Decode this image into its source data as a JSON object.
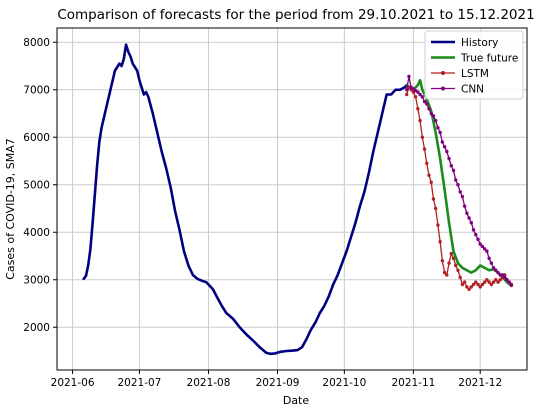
{
  "chart_data": {
    "type": "line",
    "title": "Comparison of forecasts for the period from 29.10.2021 to 15.12.2021",
    "xlabel": "Date",
    "ylabel": "Cases of COVID-19, SMA7",
    "xlim": [
      "2021-05-25",
      "2021-12-22"
    ],
    "ylim": [
      1100,
      8300
    ],
    "x_ticks": [
      "2021-06-01",
      "2021-07-01",
      "2021-08-01",
      "2021-09-01",
      "2021-10-01",
      "2021-11-01",
      "2021-12-01"
    ],
    "x_tick_labels": [
      "2021-06",
      "2021-07",
      "2021-08",
      "2021-09",
      "2021-10",
      "2021-11",
      "2021-12"
    ],
    "y_ticks": [
      2000,
      3000,
      4000,
      5000,
      6000,
      7000,
      8000
    ],
    "y_tick_labels": [
      "2000",
      "3000",
      "4000",
      "5000",
      "6000",
      "7000",
      "8000"
    ],
    "grid": true,
    "legend_position": "top-right",
    "series": [
      {
        "name": "History",
        "color": "#000080",
        "marker": "none",
        "x": [
          "2021-06-06",
          "2021-06-07",
          "2021-06-08",
          "2021-06-09",
          "2021-06-10",
          "2021-06-11",
          "2021-06-12",
          "2021-06-13",
          "2021-06-14",
          "2021-06-16",
          "2021-06-18",
          "2021-06-20",
          "2021-06-22",
          "2021-06-23",
          "2021-06-24",
          "2021-06-25",
          "2021-06-26",
          "2021-06-27",
          "2021-06-28",
          "2021-06-30",
          "2021-07-01",
          "2021-07-02",
          "2021-07-03",
          "2021-07-04",
          "2021-07-05",
          "2021-07-07",
          "2021-07-09",
          "2021-07-11",
          "2021-07-13",
          "2021-07-15",
          "2021-07-17",
          "2021-07-19",
          "2021-07-21",
          "2021-07-23",
          "2021-07-25",
          "2021-07-27",
          "2021-07-29",
          "2021-07-31",
          "2021-08-01",
          "2021-08-03",
          "2021-08-05",
          "2021-08-07",
          "2021-08-09",
          "2021-08-12",
          "2021-08-15",
          "2021-08-18",
          "2021-08-21",
          "2021-08-24",
          "2021-08-27",
          "2021-08-29",
          "2021-08-31",
          "2021-09-02",
          "2021-09-05",
          "2021-09-08",
          "2021-09-10",
          "2021-09-12",
          "2021-09-14",
          "2021-09-16",
          "2021-09-18",
          "2021-09-20",
          "2021-09-22",
          "2021-09-24",
          "2021-09-26",
          "2021-09-28",
          "2021-09-30",
          "2021-10-02",
          "2021-10-04",
          "2021-10-06",
          "2021-10-08",
          "2021-10-10",
          "2021-10-12",
          "2021-10-14",
          "2021-10-16",
          "2021-10-18",
          "2021-10-20",
          "2021-10-22",
          "2021-10-24",
          "2021-10-26",
          "2021-10-28",
          "2021-10-29"
        ],
        "y": [
          3020,
          3080,
          3300,
          3650,
          4200,
          4800,
          5400,
          5900,
          6200,
          6600,
          7000,
          7400,
          7550,
          7500,
          7650,
          7950,
          7800,
          7700,
          7550,
          7400,
          7200,
          7050,
          6900,
          6950,
          6850,
          6500,
          6100,
          5700,
          5350,
          4950,
          4450,
          4050,
          3600,
          3300,
          3100,
          3020,
          2980,
          2950,
          2900,
          2800,
          2620,
          2450,
          2300,
          2180,
          2000,
          1850,
          1720,
          1580,
          1460,
          1440,
          1450,
          1480,
          1500,
          1510,
          1520,
          1580,
          1750,
          1950,
          2100,
          2300,
          2450,
          2650,
          2900,
          3100,
          3350,
          3600,
          3900,
          4200,
          4550,
          4850,
          5250,
          5700,
          6100,
          6500,
          6900,
          6900,
          7000,
          7000,
          7050,
          7100
        ]
      },
      {
        "name": "True future",
        "color": "#1a8c1a",
        "marker": "none",
        "x": [
          "2021-10-29",
          "2021-11-01",
          "2021-11-03",
          "2021-11-04",
          "2021-11-05",
          "2021-11-07",
          "2021-11-09",
          "2021-11-11",
          "2021-11-13",
          "2021-11-15",
          "2021-11-17",
          "2021-11-19",
          "2021-11-21",
          "2021-11-23",
          "2021-11-25",
          "2021-11-27",
          "2021-11-29",
          "2021-12-01",
          "2021-12-03",
          "2021-12-05",
          "2021-12-07",
          "2021-12-09",
          "2021-12-11",
          "2021-12-13",
          "2021-12-15"
        ],
        "y": [
          7100,
          7000,
          7100,
          7200,
          7000,
          6800,
          6550,
          6100,
          5550,
          4900,
          4200,
          3600,
          3350,
          3250,
          3200,
          3150,
          3200,
          3300,
          3250,
          3200,
          3220,
          3150,
          3050,
          2950,
          2870
        ]
      },
      {
        "name": "LSTM",
        "color": "#b22222",
        "marker": "dot",
        "x": [
          "2021-10-29",
          "2021-10-30",
          "2021-10-31",
          "2021-11-01",
          "2021-11-02",
          "2021-11-03",
          "2021-11-04",
          "2021-11-05",
          "2021-11-06",
          "2021-11-07",
          "2021-11-08",
          "2021-11-09",
          "2021-11-10",
          "2021-11-11",
          "2021-11-12",
          "2021-11-13",
          "2021-11-14",
          "2021-11-15",
          "2021-11-16",
          "2021-11-17",
          "2021-11-18",
          "2021-11-19",
          "2021-11-20",
          "2021-11-21",
          "2021-11-22",
          "2021-11-23",
          "2021-11-24",
          "2021-11-25",
          "2021-11-26",
          "2021-11-27",
          "2021-11-28",
          "2021-11-29",
          "2021-11-30",
          "2021-12-01",
          "2021-12-02",
          "2021-12-03",
          "2021-12-04",
          "2021-12-05",
          "2021-12-06",
          "2021-12-07",
          "2021-12-08",
          "2021-12-09",
          "2021-12-10",
          "2021-12-11",
          "2021-12-12",
          "2021-12-13",
          "2021-12-14",
          "2021-12-15"
        ],
        "y": [
          6900,
          7050,
          7000,
          6950,
          6850,
          6600,
          6350,
          6000,
          5750,
          5450,
          5200,
          5050,
          4700,
          4500,
          4150,
          3800,
          3400,
          3150,
          3100,
          3350,
          3550,
          3450,
          3300,
          3200,
          3050,
          2900,
          2950,
          2850,
          2800,
          2850,
          2900,
          2950,
          2900,
          2850,
          2900,
          2950,
          3000,
          2950,
          2900,
          2950,
          3000,
          2950,
          3000,
          3050,
          3100,
          3000,
          2950,
          2880
        ]
      },
      {
        "name": "CNN",
        "color": "#800080",
        "marker": "dot",
        "x": [
          "2021-10-29",
          "2021-10-30",
          "2021-10-31",
          "2021-11-01",
          "2021-11-02",
          "2021-11-03",
          "2021-11-04",
          "2021-11-05",
          "2021-11-06",
          "2021-11-07",
          "2021-11-08",
          "2021-11-09",
          "2021-11-10",
          "2021-11-11",
          "2021-11-12",
          "2021-11-13",
          "2021-11-14",
          "2021-11-15",
          "2021-11-16",
          "2021-11-17",
          "2021-11-18",
          "2021-11-19",
          "2021-11-20",
          "2021-11-21",
          "2021-11-22",
          "2021-11-23",
          "2021-11-24",
          "2021-11-25",
          "2021-11-26",
          "2021-11-27",
          "2021-11-28",
          "2021-11-29",
          "2021-11-30",
          "2021-12-01",
          "2021-12-02",
          "2021-12-03",
          "2021-12-04",
          "2021-12-05",
          "2021-12-06",
          "2021-12-07",
          "2021-12-08",
          "2021-12-09",
          "2021-12-10",
          "2021-12-11",
          "2021-12-12",
          "2021-12-13",
          "2021-12-14",
          "2021-12-15"
        ],
        "y": [
          7000,
          7280,
          7050,
          7020,
          6980,
          6950,
          6900,
          6850,
          6750,
          6700,
          6600,
          6500,
          6450,
          6350,
          6200,
          6100,
          5900,
          5800,
          5700,
          5550,
          5400,
          5300,
          5100,
          5000,
          4850,
          4750,
          4550,
          4400,
          4300,
          4200,
          4050,
          3950,
          3850,
          3750,
          3700,
          3650,
          3600,
          3450,
          3350,
          3250,
          3200,
          3150,
          3100,
          3100,
          3050,
          3000,
          2950,
          2900
        ]
      }
    ]
  }
}
